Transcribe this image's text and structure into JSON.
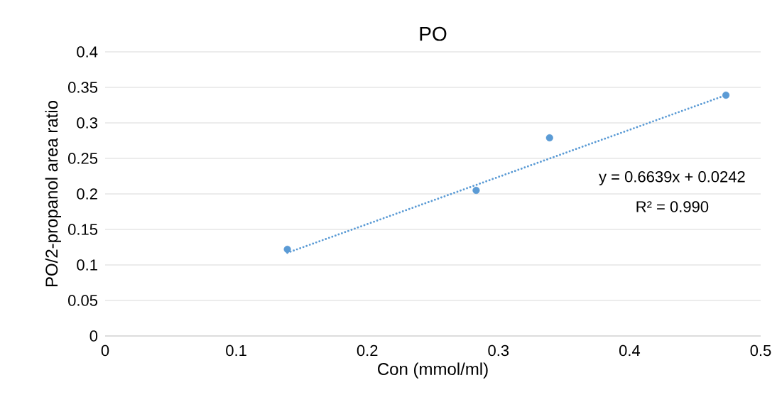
{
  "chart_data": {
    "type": "scatter",
    "title": "PO",
    "xlabel": "Con (mmol/ml)",
    "ylabel": "PO/2-propanol area ratio",
    "series": [
      {
        "color": "#5b9bd5",
        "x": [
          0.139,
          0.283,
          0.339,
          0.4735
        ],
        "values": [
          0.122,
          0.205,
          0.279,
          0.339
        ]
      },
      {
        "type": "line",
        "color": "#5b9bd5",
        "x": [
          0.139,
          0.4735
        ],
        "values": [
          0.117,
          0.339
        ]
      }
    ],
    "annotations": [
      "y = 0.6639x + 0.0242",
      "R² = 0.990"
    ],
    "xlim": [
      0,
      0.5
    ],
    "xticks": [
      0,
      0.1,
      0.2,
      0.3,
      0.4,
      0.5
    ],
    "ylim": [
      0,
      0.4
    ],
    "yticks": [
      0,
      0.05,
      0.1,
      0.15,
      0.2,
      0.25,
      0.3,
      0.35,
      0.4
    ],
    "grid": "y",
    "line_style": "dotted"
  }
}
